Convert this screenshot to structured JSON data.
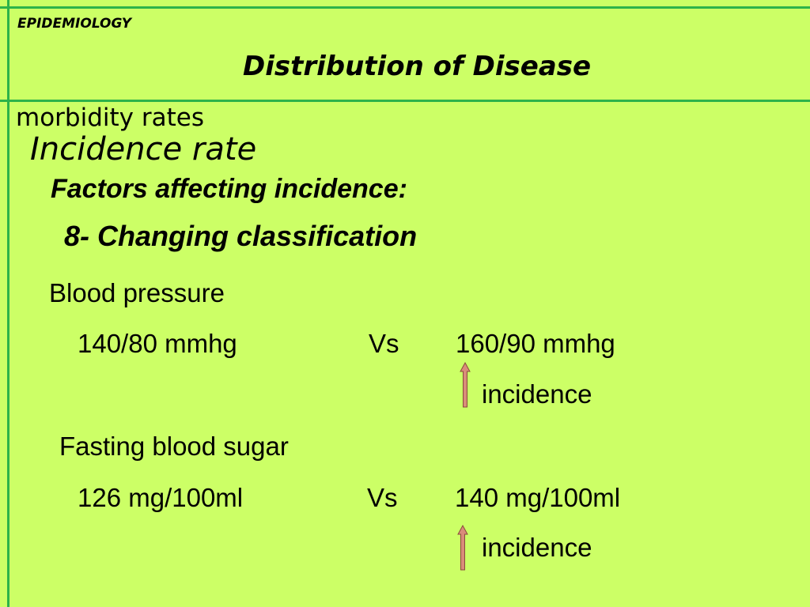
{
  "header": {
    "section": "EPIDEMIOLOGY",
    "title": "Distribution of Disease"
  },
  "subheading": {
    "morbidity": "morbidity rates",
    "incidence_rate": "Incidence rate"
  },
  "content": {
    "factors_heading": "Factors affecting incidence:",
    "item_heading": "8- Changing classification",
    "blood_pressure": {
      "label": "Blood pressure",
      "old_value": "140/80 mmhg",
      "vs": "Vs",
      "new_value": "160/90 mmhg",
      "effect": "incidence",
      "effect_icon": "up-arrow-icon"
    },
    "fasting_sugar": {
      "label": "Fasting blood sugar",
      "old_value": "126 mg/100ml",
      "vs": "Vs",
      "new_value": "140 mg/100ml",
      "effect": "incidence",
      "effect_icon": "up-arrow-icon"
    }
  },
  "colors": {
    "background": "#ccff66",
    "rule_lines": "#2db34a",
    "arrow_fill": "#d98c7a",
    "arrow_stroke": "#8a4a3c"
  }
}
